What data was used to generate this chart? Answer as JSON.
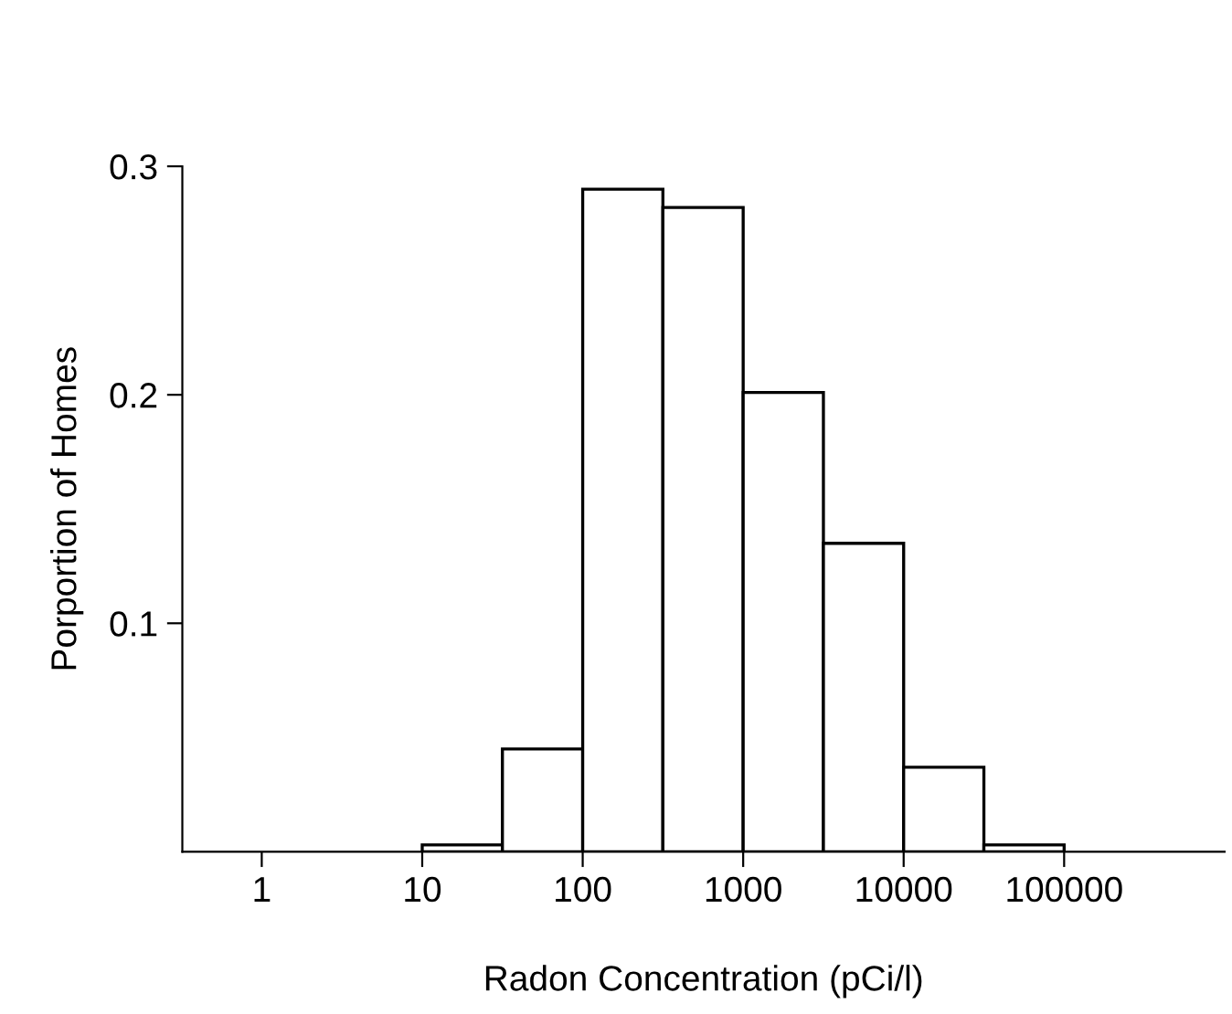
{
  "chart_data": {
    "type": "histogram",
    "xlabel": "Radon Concentration (pCi/l)",
    "ylabel": "Porportion of Homes",
    "bins": [
      10,
      31.6,
      100,
      316,
      1000,
      3162,
      10000,
      31623,
      100000
    ],
    "values": [
      0.003,
      0.045,
      0.29,
      0.282,
      0.201,
      0.135,
      0.037,
      0.003
    ],
    "color": "#ffffff",
    "log": "x",
    "xlim": [
      0.32,
      1000000
    ],
    "ylim": [
      0,
      0.3
    ],
    "xticks": [
      1,
      10,
      100,
      1000,
      10000,
      100000
    ],
    "yticks": [
      {
        "value": 0.1,
        "label": "0.1"
      },
      {
        "value": 0.2,
        "label": "0.2"
      },
      {
        "value": 0.3,
        "label": "0.3"
      }
    ],
    "grid": false
  }
}
